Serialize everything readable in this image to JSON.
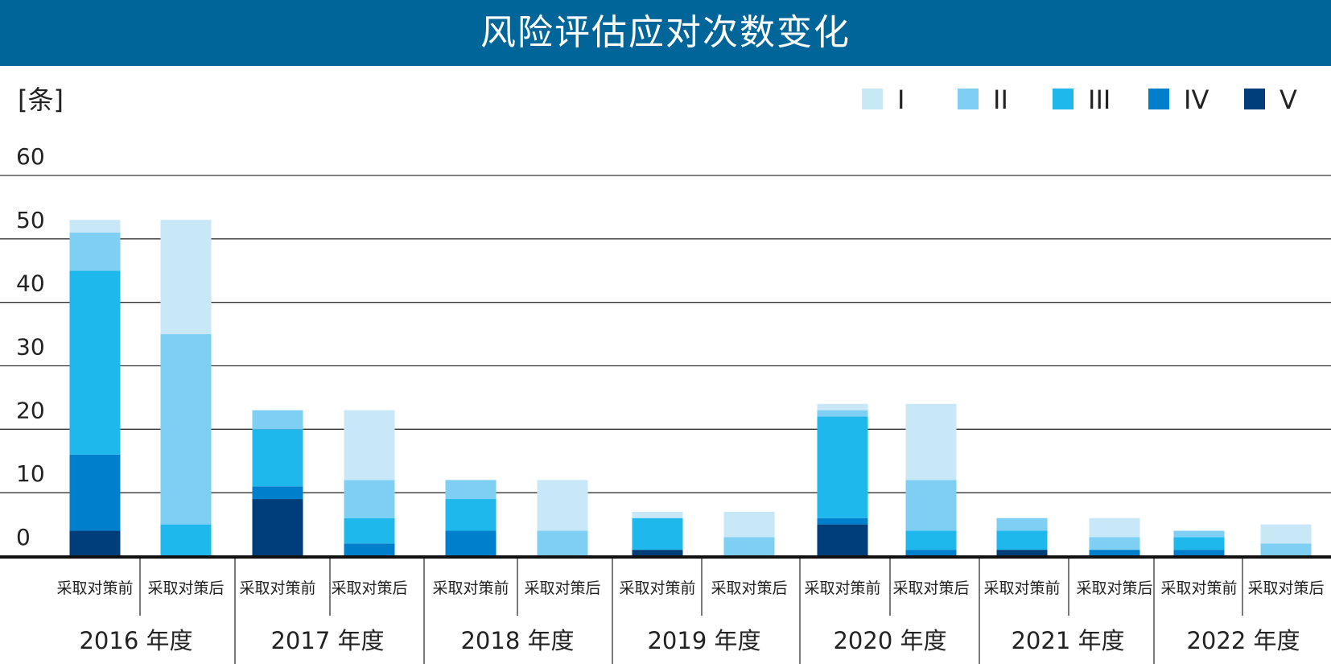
{
  "title": "风险评估应对次数变化",
  "unit_label": "[条]",
  "colors": {
    "title_bg": "#006699",
    "grid": "#333333",
    "axis": "#111111",
    "I": "#c8e8f8",
    "II": "#7ecff3",
    "III": "#1eb8ec",
    "IV": "#0080cc",
    "V": "#003e7a"
  },
  "chart_data": {
    "type": "bar",
    "stacked": true,
    "title": "风险评估应对次数变化",
    "ylabel": "[条]",
    "ylim": [
      0,
      60
    ],
    "yticks": [
      "0",
      "10",
      "20",
      "30",
      "40",
      "50",
      "60"
    ],
    "grid": true,
    "legend_position": "top-right",
    "groups": [
      "2016 年度",
      "2017 年度",
      "2018 年度",
      "2019 年度",
      "2020 年度",
      "2021 年度",
      "2022 年度"
    ],
    "categories": [
      "采取对策前",
      "采取对策后",
      "采取对策前",
      "采取对策后",
      "采取对策前",
      "采取对策后",
      "采取对策前",
      "采取对策后",
      "采取对策前",
      "采取对策后",
      "采取对策前",
      "采取对策后",
      "采取对策前",
      "采取对策后"
    ],
    "series": [
      {
        "name": "V",
        "color": "#003e7a",
        "values": [
          4,
          0,
          9,
          0,
          0,
          0,
          1,
          0,
          5,
          0,
          1,
          0,
          0,
          0
        ]
      },
      {
        "name": "IV",
        "color": "#0080cc",
        "values": [
          12,
          0,
          2,
          2,
          4,
          0,
          0,
          0,
          1,
          1,
          0,
          1,
          1,
          0
        ]
      },
      {
        "name": "III",
        "color": "#1eb8ec",
        "values": [
          29,
          5,
          9,
          4,
          5,
          0,
          5,
          0,
          16,
          3,
          3,
          0,
          2,
          0
        ]
      },
      {
        "name": "II",
        "color": "#7ecff3",
        "values": [
          6,
          30,
          3,
          6,
          3,
          4,
          0,
          3,
          1,
          8,
          2,
          2,
          1,
          2
        ]
      },
      {
        "name": "I",
        "color": "#c8e8f8",
        "values": [
          2,
          18,
          0,
          11,
          0,
          8,
          1,
          4,
          1,
          12,
          0,
          3,
          0,
          3
        ]
      }
    ]
  }
}
